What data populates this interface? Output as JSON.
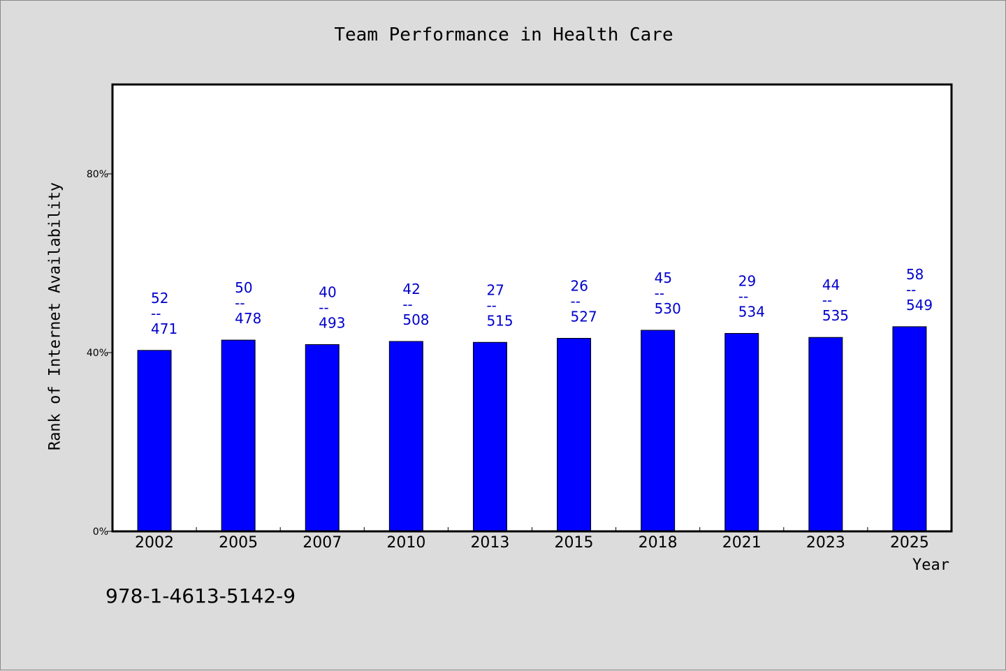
{
  "chart_data": {
    "type": "bar",
    "title": "Team Performance in Health Care",
    "xlabel": "Year",
    "ylabel": "Rank of Internet Availability",
    "categories": [
      "2002",
      "2005",
      "2007",
      "2010",
      "2013",
      "2015",
      "2018",
      "2021",
      "2023",
      "2025"
    ],
    "values": [
      40.5,
      42.8,
      41.8,
      42.5,
      42.3,
      43.2,
      45.0,
      44.3,
      43.4,
      45.8
    ],
    "annotations_top": [
      "52",
      "50",
      "40",
      "42",
      "27",
      "26",
      "45",
      "29",
      "44",
      "58"
    ],
    "annotations_sep": "--",
    "annotations_bottom": [
      "471",
      "478",
      "493",
      "508",
      "515",
      "527",
      "530",
      "534",
      "535",
      "549"
    ],
    "yticks": [
      "0%",
      "40%",
      "80%"
    ],
    "ytick_values": [
      0,
      40,
      80
    ],
    "ylim": [
      0,
      100
    ],
    "grid": false,
    "colors": {
      "bar": "#0000ff",
      "label": "#0000cc",
      "background": "#dcdcdc",
      "plot": "#ffffff"
    }
  },
  "footnote": "978-1-4613-5142-9"
}
